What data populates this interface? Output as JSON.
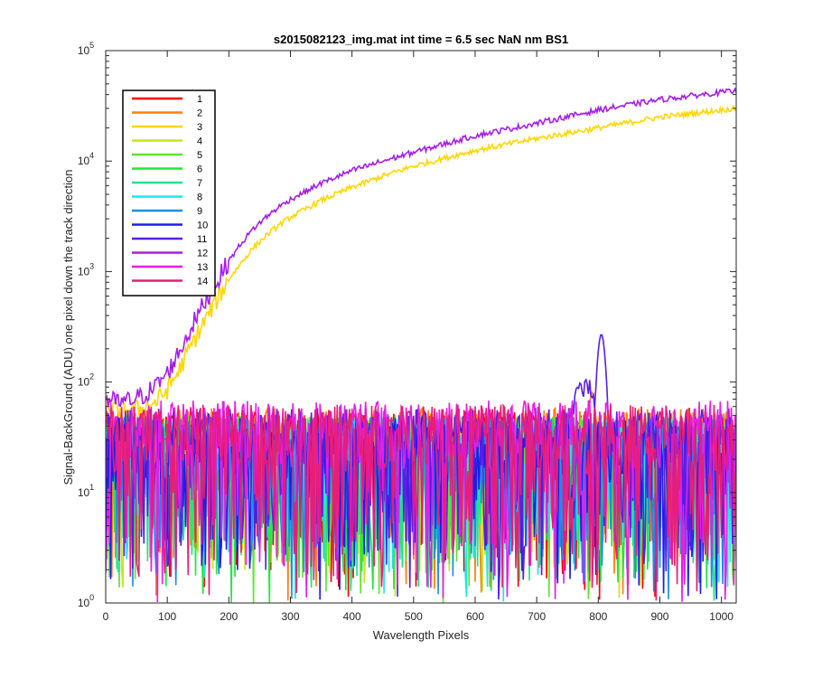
{
  "chart_data": {
    "type": "line",
    "title": "s2015082123_img.mat int time = 6.5 sec  NaN nm BS1",
    "xlabel": "Wavelength Pixels",
    "ylabel": "Signal-BackGround (ADU) one pixel down the track direction",
    "xlim": [
      0,
      1024
    ],
    "ylim": [
      1,
      100000
    ],
    "yscale": "log",
    "grid": false,
    "legend_position": "top-left",
    "x_ticks": [
      "0",
      "100",
      "200",
      "300",
      "400",
      "500",
      "600",
      "700",
      "800",
      "900",
      "1000"
    ],
    "y_ticks": [
      {
        "base": "10",
        "exp": "0"
      },
      {
        "base": "10",
        "exp": "1"
      },
      {
        "base": "10",
        "exp": "2"
      },
      {
        "base": "10",
        "exp": "3"
      },
      {
        "base": "10",
        "exp": "4"
      },
      {
        "base": "10",
        "exp": "5"
      }
    ],
    "series": [
      {
        "name": "1",
        "color": "#ff0000",
        "kind": "noise",
        "noise_level": 28
      },
      {
        "name": "2",
        "color": "#ff7f0e",
        "kind": "noise_peak",
        "noise_level": 30,
        "peak_x": 790,
        "peak_value": 80
      },
      {
        "name": "3",
        "color": "#ffd700",
        "kind": "curve",
        "x": [
          0,
          20,
          40,
          60,
          80,
          100,
          120,
          140,
          160,
          180,
          200,
          220,
          240,
          260,
          280,
          300,
          350,
          400,
          450,
          500,
          600,
          700,
          800,
          900,
          1000,
          1024
        ],
        "values": [
          60,
          55,
          55,
          58,
          65,
          85,
          130,
          220,
          350,
          550,
          850,
          1200,
          1650,
          2100,
          2600,
          3100,
          4400,
          5800,
          7300,
          9000,
          12500,
          16000,
          20000,
          25000,
          29000,
          30000
        ]
      },
      {
        "name": "4",
        "color": "#c5e61e",
        "kind": "noise",
        "noise_level": 25
      },
      {
        "name": "5",
        "color": "#5ce62d",
        "kind": "noise",
        "noise_level": 26
      },
      {
        "name": "6",
        "color": "#22e63c",
        "kind": "noise",
        "noise_level": 25
      },
      {
        "name": "7",
        "color": "#1ee68b",
        "kind": "noise",
        "noise_level": 24
      },
      {
        "name": "8",
        "color": "#1ee6e6",
        "kind": "noise",
        "noise_level": 24
      },
      {
        "name": "9",
        "color": "#1e8be6",
        "kind": "noise",
        "noise_level": 25
      },
      {
        "name": "10",
        "color": "#1e1ee6",
        "kind": "noise",
        "noise_level": 26
      },
      {
        "name": "11",
        "color": "#5a1ee6",
        "kind": "noise_peak",
        "noise_level": 30,
        "peak_x": 805,
        "peak_value": 270
      },
      {
        "name": "12",
        "color": "#a51ee6",
        "kind": "curve",
        "x": [
          0,
          20,
          40,
          60,
          80,
          100,
          120,
          140,
          160,
          180,
          200,
          220,
          240,
          260,
          280,
          300,
          350,
          400,
          450,
          500,
          600,
          700,
          800,
          900,
          1000,
          1024
        ],
        "values": [
          70,
          65,
          68,
          75,
          90,
          120,
          190,
          320,
          520,
          800,
          1250,
          1800,
          2450,
          3100,
          3800,
          4500,
          6300,
          8200,
          10000,
          12000,
          17000,
          22000,
          29000,
          36000,
          42000,
          43000
        ]
      },
      {
        "name": "13",
        "color": "#e61ee6",
        "kind": "noise",
        "noise_level": 35
      },
      {
        "name": "14",
        "color": "#e61e78",
        "kind": "noise",
        "noise_level": 32
      }
    ]
  }
}
